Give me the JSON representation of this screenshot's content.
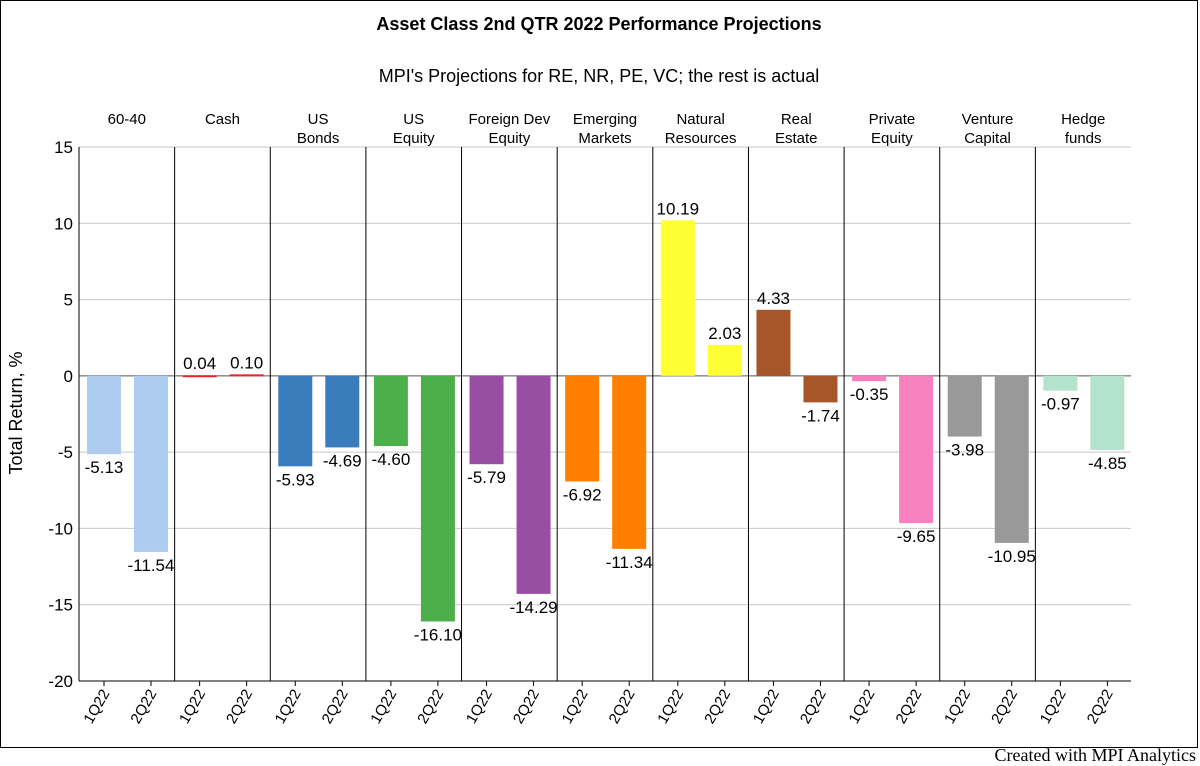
{
  "chart_data": {
    "type": "bar",
    "title": "Asset Class 2nd QTR 2022 Performance Projections",
    "subtitle": "MPI's Projections for RE, NR, PE, VC; the rest is actual",
    "ylabel": "Total Return, %",
    "ylim": [
      -20,
      15
    ],
    "yticks": [
      15,
      10,
      5,
      0,
      -5,
      -10,
      -15,
      -20
    ],
    "grid": true,
    "categories": [
      "1Q22",
      "2Q22"
    ],
    "panels": [
      {
        "name": [
          "60-40"
        ],
        "color": "#aecbf0",
        "values": [
          -5.13,
          -11.54
        ]
      },
      {
        "name": [
          "Cash"
        ],
        "color": "#e8262a",
        "values": [
          0.04,
          0.1
        ]
      },
      {
        "name": [
          "US",
          "Bonds"
        ],
        "color": "#3a7dbc",
        "values": [
          -5.93,
          -4.69
        ]
      },
      {
        "name": [
          "US",
          "Equity"
        ],
        "color": "#4daf4a",
        "values": [
          -4.6,
          -16.1
        ]
      },
      {
        "name": [
          "Foreign Dev",
          "Equity"
        ],
        "color": "#984ea3",
        "values": [
          -5.79,
          -14.29
        ]
      },
      {
        "name": [
          "Emerging",
          "Markets"
        ],
        "color": "#ff7f00",
        "values": [
          -6.92,
          -11.34
        ]
      },
      {
        "name": [
          "Natural",
          "Resources"
        ],
        "color": "#ffff33",
        "values": [
          10.19,
          2.03
        ]
      },
      {
        "name": [
          "Real",
          "Estate"
        ],
        "color": "#a65628",
        "values": [
          4.33,
          -1.74
        ]
      },
      {
        "name": [
          "Private",
          "Equity"
        ],
        "color": "#f781bf",
        "values": [
          -0.35,
          -9.65
        ]
      },
      {
        "name": [
          "Venture",
          "Capital"
        ],
        "color": "#999999",
        "values": [
          -3.98,
          -10.95
        ]
      },
      {
        "name": [
          "Hedge",
          "funds"
        ],
        "color": "#b3e2cd",
        "values": [
          -0.97,
          -4.85
        ]
      }
    ]
  },
  "footer": {
    "credit": "Created with MPI Analytics"
  }
}
